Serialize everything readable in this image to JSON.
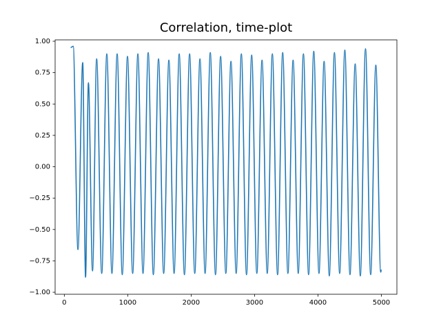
{
  "chart_data": {
    "type": "line",
    "title": "Correlation, time-plot",
    "x": [
      100,
      140,
      215,
      290,
      335,
      380,
      445,
      510,
      590,
      670,
      751,
      833,
      914,
      996,
      1078,
      1160,
      1241,
      1323,
      1404,
      1486,
      1567,
      1649,
      1731,
      1812,
      1894,
      1976,
      2057,
      2139,
      2220,
      2302,
      2384,
      2465,
      2547,
      2628,
      2710,
      2792,
      2873,
      2955,
      3036,
      3118,
      3200,
      3281,
      3363,
      3444,
      3526,
      3608,
      3689,
      3771,
      3852,
      3934,
      4016,
      4097,
      4179,
      4260,
      4342,
      4424,
      4505,
      4587,
      4668,
      4750,
      4831,
      4913,
      4990,
      5000
    ],
    "series": [
      {
        "color": "#1f77b4",
        "values": [
          0.95,
          0.96,
          -0.66,
          0.83,
          -0.88,
          0.67,
          -0.83,
          0.86,
          -0.85,
          0.9,
          -0.85,
          0.9,
          -0.86,
          0.88,
          -0.85,
          0.9,
          -0.85,
          0.91,
          -0.86,
          0.86,
          -0.85,
          0.85,
          -0.85,
          0.9,
          -0.86,
          0.9,
          -0.85,
          0.86,
          -0.85,
          0.91,
          -0.86,
          0.88,
          -0.85,
          0.84,
          -0.85,
          0.9,
          -0.86,
          0.89,
          -0.85,
          0.85,
          -0.85,
          0.9,
          -0.86,
          0.91,
          -0.85,
          0.85,
          -0.85,
          0.9,
          -0.86,
          0.92,
          -0.85,
          0.84,
          -0.87,
          0.91,
          -0.85,
          0.93,
          -0.86,
          0.82,
          -0.87,
          0.94,
          -0.86,
          0.81,
          -0.84,
          -0.82
        ]
      }
    ],
    "xlim": [
      -145,
      5245
    ],
    "xticks": [
      0,
      1000,
      2000,
      3000,
      4000,
      5000
    ],
    "ylim": [
      -1.016,
      1.011
    ],
    "yticks": [
      {
        "value": -1,
        "label": "−1.00"
      },
      {
        "value": -0.75,
        "label": "−0.75"
      },
      {
        "value": -0.5,
        "label": "−0.50"
      },
      {
        "value": -0.25,
        "label": "−0.25"
      },
      {
        "value": 0,
        "label": "0.00"
      },
      {
        "value": 0.25,
        "label": "0.25"
      },
      {
        "value": 0.5,
        "label": "0.50"
      },
      {
        "value": 0.75,
        "label": "0.75"
      },
      {
        "value": 1,
        "label": "1.00"
      }
    ],
    "grid": false
  }
}
